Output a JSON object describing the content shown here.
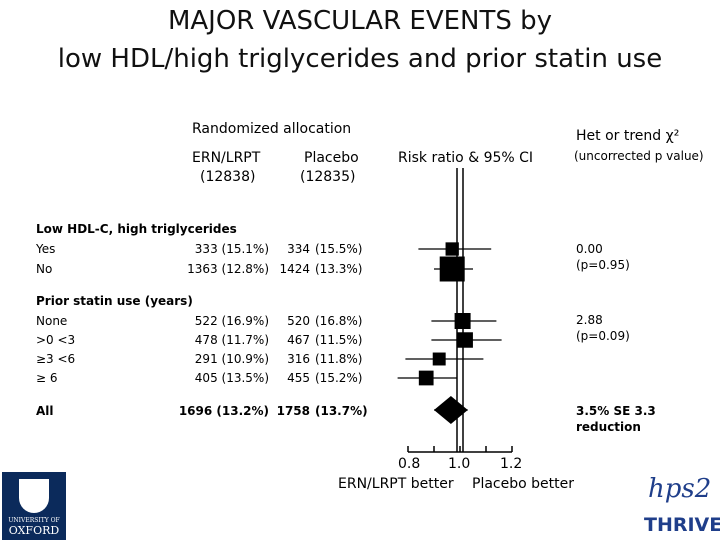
{
  "title_line1": "MAJOR VASCULAR EVENTS by",
  "title_line2": "low HDL/high triglycerides and prior statin use",
  "headers": {
    "randomized": "Randomized allocation",
    "ern": "ERN/LRPT",
    "ern_n": "(12838)",
    "placebo": "Placebo",
    "placebo_n": "(12835)",
    "risk": "Risk ratio & 95% CI",
    "het": "Het or trend χ²",
    "het_sub": "(uncorrected p value)"
  },
  "rows": [
    {
      "label": "Low HDL-C, high triglycerides",
      "heading": true
    },
    {
      "label": "Yes",
      "ern": "333 (15.1%)",
      "pla_n": "334",
      "pla_pct": "(15.5%)"
    },
    {
      "label": "No",
      "ern": "1363 (12.8%)",
      "pla_n": "1424",
      "pla_pct": "(13.3%)"
    },
    {
      "label": "Prior statin use (years)",
      "heading": true
    },
    {
      "label": "None",
      "ern": "522 (16.9%)",
      "pla_n": "520",
      "pla_pct": "(16.8%)"
    },
    {
      "label": ">0 <3",
      "ern": "478 (11.7%)",
      "pla_n": "467",
      "pla_pct": "(11.5%)"
    },
    {
      "label": "≥3 <6",
      "ern": "291 (10.9%)",
      "pla_n": "316",
      "pla_pct": "(11.8%)"
    },
    {
      "label": "≥ 6",
      "ern": "405 (13.5%)",
      "pla_n": "455",
      "pla_pct": "(15.2%)"
    },
    {
      "label": "All",
      "heading": true,
      "ern": "1696 (13.2%)",
      "pla_n": "1758",
      "pla_pct": "(13.7%)"
    }
  ],
  "het_values": [
    {
      "line1": "0.00",
      "line2": "(p=0.95)"
    },
    {
      "line1": "2.88",
      "line2": "(p=0.09)"
    },
    {
      "line1": "3.5% SE 3.3",
      "line2": "reduction"
    }
  ],
  "axis": {
    "ticks": [
      "0.8",
      "1.0",
      "1.2"
    ],
    "left_label": "ERN/LRPT better",
    "right_label": "Placebo better"
  },
  "chart_data": {
    "type": "forest",
    "xlabel": "",
    "xlim": [
      0.8,
      1.2
    ],
    "reference_line": 1.0,
    "points": [
      {
        "category": "Low HDL-C, high triglycerides: Yes",
        "rr": 0.97,
        "lo": 0.84,
        "hi": 1.12,
        "weight": 0.35,
        "shape": "square"
      },
      {
        "category": "Low HDL-C, high triglycerides: No",
        "rr": 0.97,
        "lo": 0.9,
        "hi": 1.05,
        "weight": 1.0,
        "shape": "square"
      },
      {
        "category": "Prior statin use: None",
        "rr": 1.01,
        "lo": 0.89,
        "hi": 1.14,
        "weight": 0.5,
        "shape": "square"
      },
      {
        "category": "Prior statin use: >0 <3",
        "rr": 1.02,
        "lo": 0.89,
        "hi": 1.16,
        "weight": 0.47,
        "shape": "square"
      },
      {
        "category": "Prior statin use: ≥3 <6",
        "rr": 0.92,
        "lo": 0.79,
        "hi": 1.09,
        "weight": 0.33,
        "shape": "square"
      },
      {
        "category": "Prior statin use: ≥ 6",
        "rr": 0.87,
        "lo": 0.76,
        "hi": 0.99,
        "weight": 0.43,
        "shape": "square"
      },
      {
        "category": "All",
        "rr": 0.965,
        "lo": 0.9,
        "hi": 1.03,
        "shape": "diamond"
      }
    ]
  },
  "logos": {
    "oxford_top": "UNIVERSITY OF",
    "oxford_main": "OXFORD",
    "thrive_top": "hps2",
    "thrive_main": "THRIVE",
    "thrive_color": "#1f3e8a"
  }
}
